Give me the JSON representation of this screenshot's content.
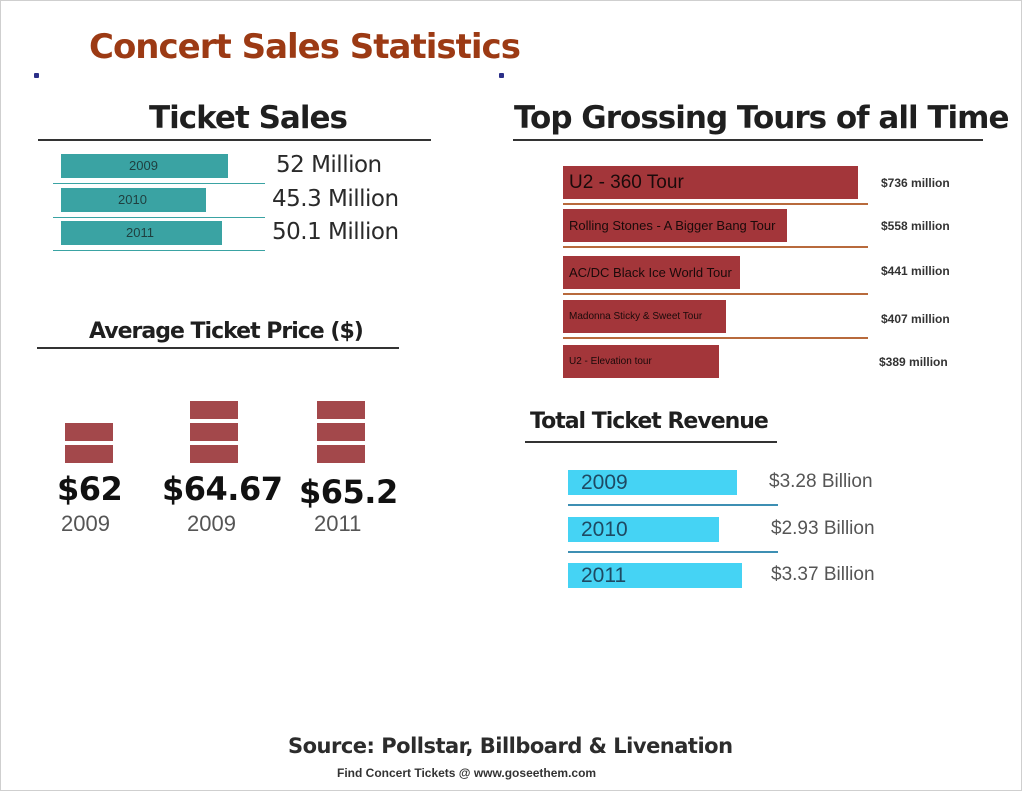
{
  "title": "Concert Sales Statistics",
  "ticket_sales": {
    "heading": "Ticket Sales",
    "bar_color": "#3aa3a3",
    "items": [
      {
        "year": "2009",
        "millions": 52,
        "label": "52 Million"
      },
      {
        "year": "2010",
        "millions": 45.3,
        "label": "45.3 Million"
      },
      {
        "year": "2011",
        "millions": 50.1,
        "label": "50.1 Million"
      }
    ]
  },
  "avg_price": {
    "heading": "Average Ticket Price ($)",
    "brick_color": "#a3484b",
    "items": [
      {
        "price": "$62",
        "year": "2009",
        "blocks": 2
      },
      {
        "price": "$64.67",
        "year": "2009",
        "blocks": 3
      },
      {
        "price": "$65.2",
        "year": "2011",
        "blocks": 3
      }
    ]
  },
  "top_tours": {
    "heading": "Top Grossing Tours of all Time",
    "bar_color": "#a3363a",
    "items": [
      {
        "name": "U2 - 360 Tour",
        "millions": 736,
        "label": "$736 million"
      },
      {
        "name": "Rolling Stones - A Bigger Bang Tour",
        "millions": 558,
        "label": "$558 million"
      },
      {
        "name": "AC/DC Black Ice World Tour",
        "millions": 441,
        "label": "$441 million"
      },
      {
        "name": "Madonna Sticky & Sweet Tour",
        "millions": 407,
        "label": "$407 million"
      },
      {
        "name": "U2 - Elevation tour",
        "millions": 389,
        "label": "$389 million"
      }
    ]
  },
  "total_revenue": {
    "heading": "Total Ticket Revenue",
    "bar_color": "#45d3f4",
    "items": [
      {
        "year": "2009",
        "billions": 3.28,
        "label": "$3.28 Billion"
      },
      {
        "year": "2010",
        "billions": 2.93,
        "label": "$2.93 Billion"
      },
      {
        "year": "2011",
        "billions": 3.37,
        "label": "$3.37 Billion"
      }
    ]
  },
  "footer": {
    "source": "Source: Pollstar, Billboard & Livenation",
    "credit": "Find Concert Tickets @ www.goseethem.com"
  },
  "chart_data": [
    {
      "type": "bar",
      "title": "Ticket Sales",
      "categories": [
        "2009",
        "2010",
        "2011"
      ],
      "values": [
        52,
        45.3,
        50.1
      ],
      "xlabel": "",
      "ylabel": ""
    },
    {
      "type": "bar",
      "title": "Average Ticket Price ($)",
      "categories": [
        "2009",
        "2009",
        "2011"
      ],
      "values": [
        62,
        64.67,
        65.2
      ],
      "xlabel": "",
      "ylabel": ""
    },
    {
      "type": "bar",
      "title": "Top Grossing Tours of all Time",
      "categories": [
        "U2 - 360 Tour",
        "Rolling Stones - A Bigger Bang Tour",
        "AC/DC Black Ice World Tour",
        "Madonna Sticky & Sweet Tour",
        "U2 - Elevation tour"
      ],
      "values": [
        736,
        558,
        441,
        407,
        389
      ],
      "xlabel": "",
      "ylabel": ""
    },
    {
      "type": "bar",
      "title": "Total Ticket Revenue",
      "categories": [
        "2009",
        "2010",
        "2011"
      ],
      "values": [
        3.28,
        2.93,
        3.37
      ],
      "xlabel": "",
      "ylabel": ""
    }
  ]
}
